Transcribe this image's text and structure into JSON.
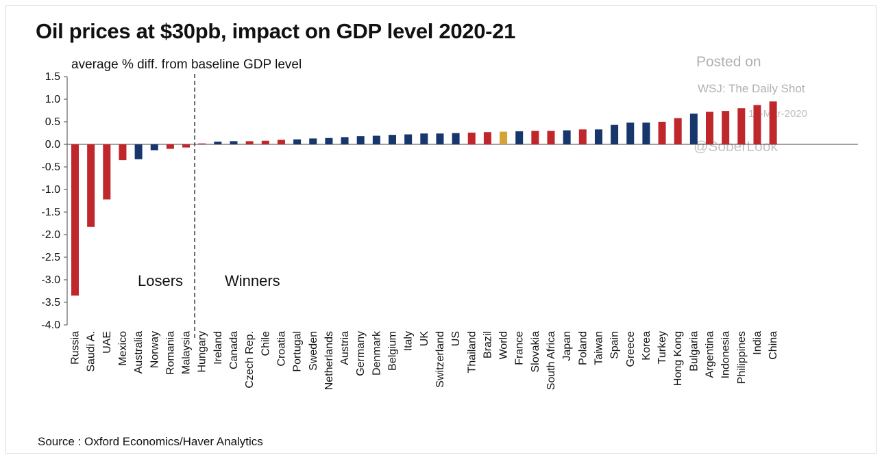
{
  "title": "Oil prices at $30pb, impact on GDP level 2020-21",
  "subtitle": "average  % diff. from baseline  GDP level",
  "source": "Source : Oxford Economics/Haver Analytics",
  "watermark": {
    "line1": "Posted on",
    "line2": "WSJ: The Daily Shot",
    "line3": "13-Mar-2020",
    "line4": "@SoberLook"
  },
  "colors": {
    "red": "#c0272d",
    "blue": "#17366b",
    "gold": "#d4a336"
  },
  "chart_data": {
    "type": "bar",
    "ylim": [
      -4.0,
      1.5
    ],
    "yticks": [
      "1.5",
      "1.0",
      "0.5",
      "0.0",
      "-0.5",
      "-1.0",
      "-1.5",
      "-2.0",
      "-2.5",
      "-3.0",
      "-3.5",
      "-4.0"
    ],
    "region_labels": [
      "Losers",
      "Winners"
    ],
    "categories": [
      "Russia",
      "Saudi A.",
      "UAE",
      "Mexico",
      "Australia",
      "Norway",
      "Romania",
      "Malaysia",
      "Hungary",
      "Ireland",
      "Canada",
      "Czech Rep.",
      "Chile",
      "Croatia",
      "Portugal",
      "Sweden",
      "Netherlands",
      "Austria",
      "Germany",
      "Denmark",
      "Belgium",
      "Italy",
      "UK",
      "Switzerland",
      "US",
      "Thailand",
      "Brazil",
      "World",
      "France",
      "Slovakia",
      "South Africa",
      "Japan",
      "Poland",
      "Taiwan",
      "Spain",
      "Greece",
      "Korea",
      "Turkey",
      "Hong Kong",
      "Bulgaria",
      "Argentina",
      "Indonesia",
      "Philippines",
      "India",
      "China"
    ],
    "values": [
      -3.35,
      -1.83,
      -1.22,
      -0.35,
      -0.33,
      -0.13,
      -0.1,
      -0.07,
      0.02,
      0.06,
      0.07,
      0.07,
      0.08,
      0.1,
      0.11,
      0.13,
      0.14,
      0.16,
      0.18,
      0.19,
      0.21,
      0.22,
      0.24,
      0.24,
      0.25,
      0.26,
      0.27,
      0.28,
      0.29,
      0.3,
      0.3,
      0.31,
      0.33,
      0.33,
      0.43,
      0.48,
      0.48,
      0.5,
      0.58,
      0.68,
      0.72,
      0.74,
      0.8,
      0.87,
      0.95
    ],
    "bar_colors": [
      "red",
      "red",
      "red",
      "red",
      "blue",
      "blue",
      "red",
      "red",
      "red",
      "blue",
      "blue",
      "red",
      "red",
      "red",
      "blue",
      "blue",
      "blue",
      "blue",
      "blue",
      "blue",
      "blue",
      "blue",
      "blue",
      "blue",
      "blue",
      "red",
      "red",
      "gold",
      "blue",
      "red",
      "red",
      "blue",
      "red",
      "blue",
      "blue",
      "blue",
      "blue",
      "red",
      "red",
      "blue",
      "red",
      "red",
      "red",
      "red",
      "red"
    ]
  }
}
